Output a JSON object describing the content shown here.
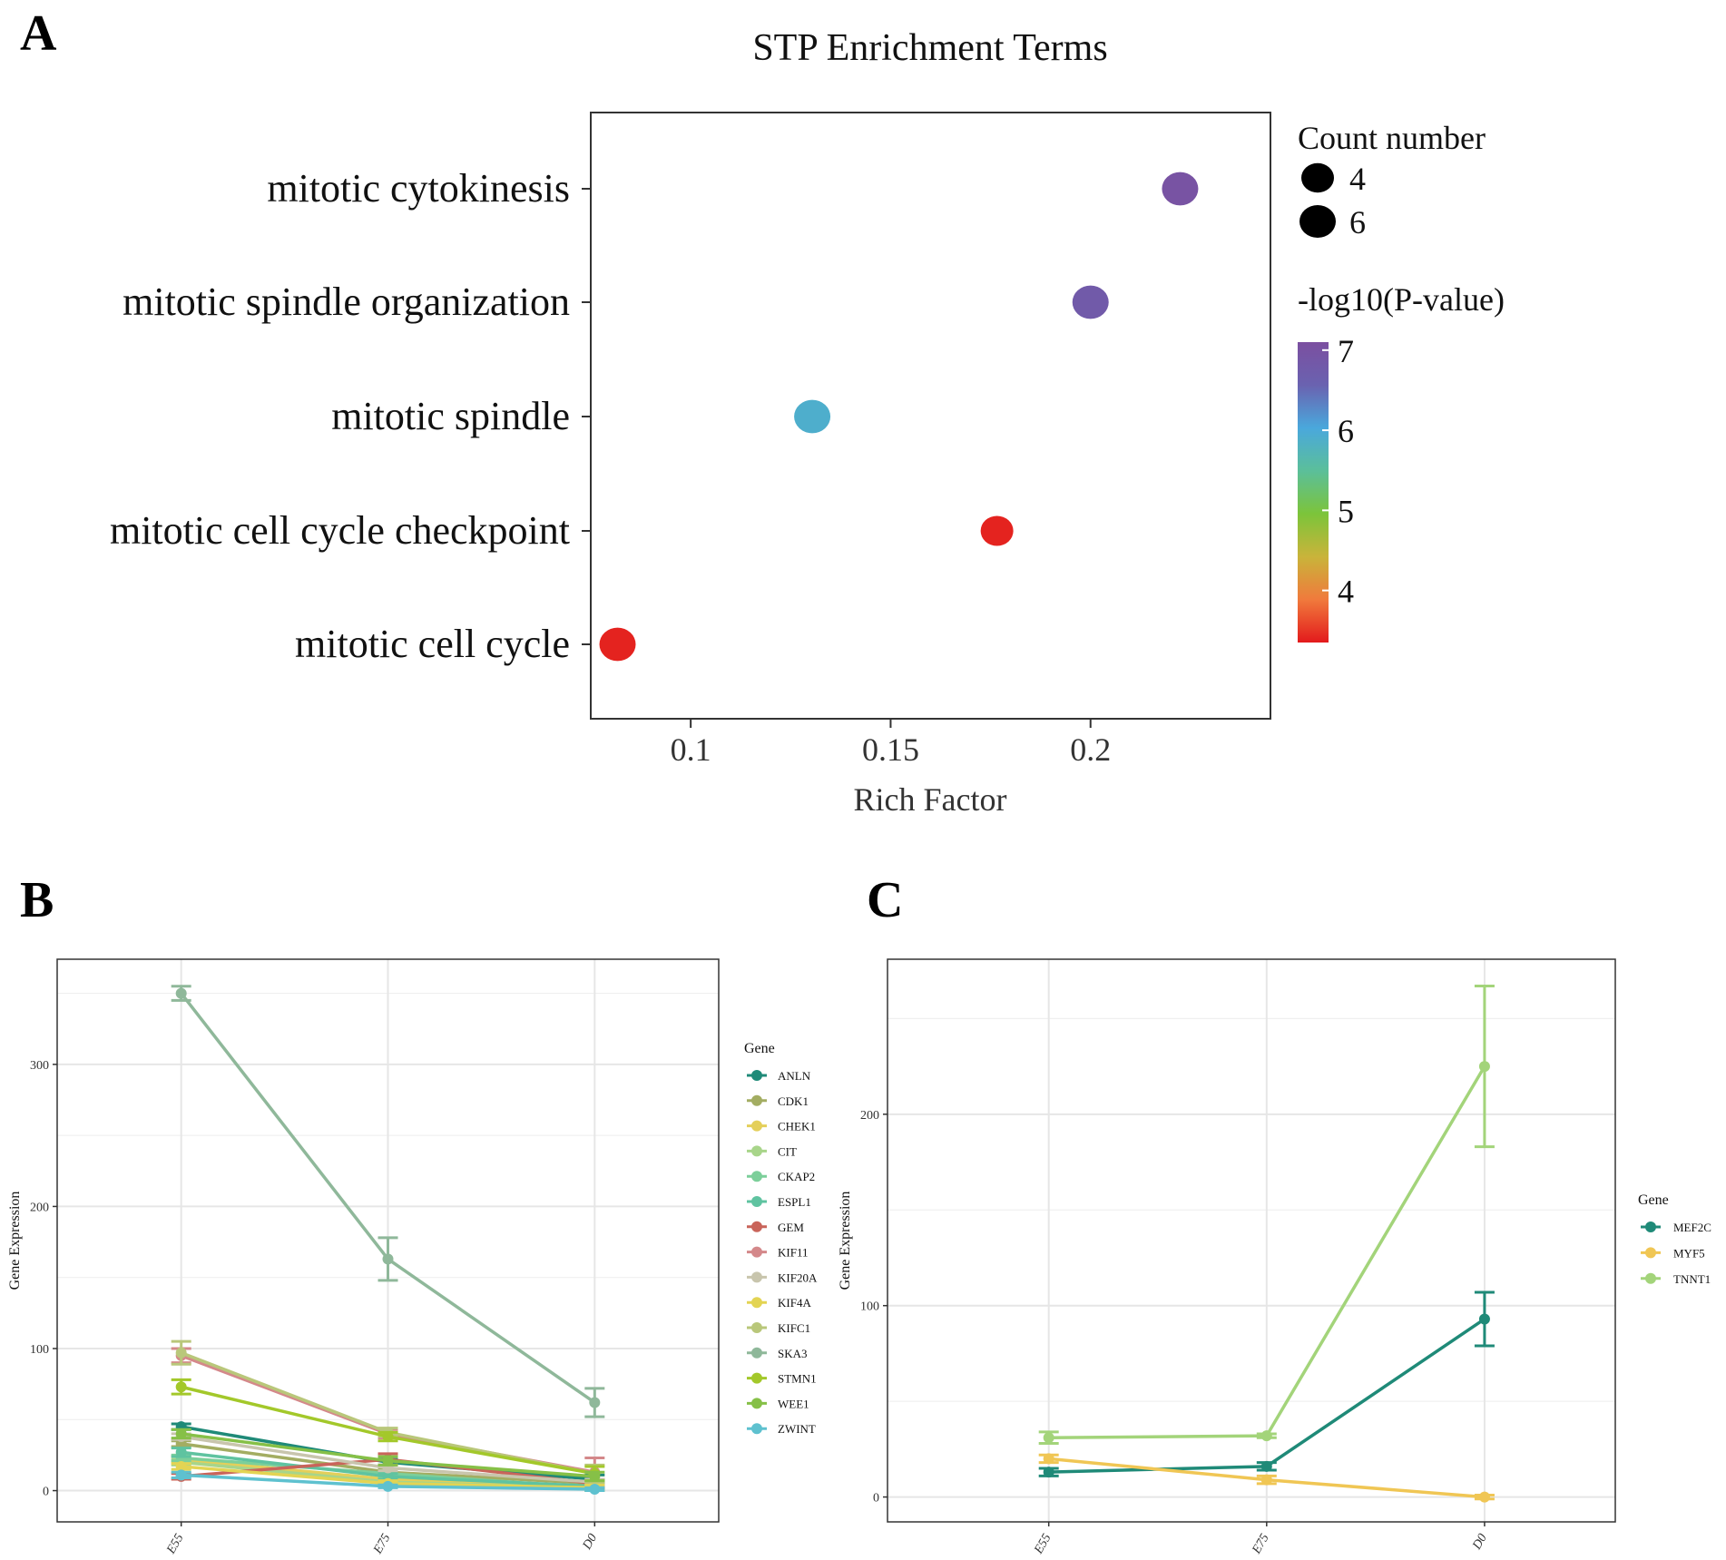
{
  "panel_letters": {
    "a": "A",
    "b": "B",
    "c": "C"
  },
  "chart_data": [
    {
      "type": "scatter",
      "panel": "A",
      "title": "STP Enrichment Terms",
      "xlabel": "Rich Factor",
      "ylabel": "",
      "xlim": [
        0.075,
        0.245
      ],
      "xticks": [
        0.1,
        0.15,
        0.2
      ],
      "xtick_labels": [
        "0.1",
        "0.15",
        "0.2"
      ],
      "categories": [
        "mitotic cytokinesis",
        "mitotic spindle organization",
        "mitotic spindle",
        "mitotic cell cycle checkpoint",
        "mitotic cell cycle"
      ],
      "rich_factor": [
        0.2224,
        0.2,
        0.1304,
        0.1766,
        0.0817
      ],
      "neg_log10_p": [
        7.0,
        6.8,
        5.9,
        3.4,
        3.4
      ],
      "count": [
        6,
        6,
        6,
        4,
        6
      ],
      "size_legend": {
        "title": "Count number",
        "values": [
          4,
          6
        ],
        "labels": [
          "4",
          "6"
        ]
      },
      "color_legend": {
        "title": "-log10(P-value)",
        "range": [
          3.35,
          7.1
        ],
        "ticks": [
          7,
          6,
          5,
          4
        ],
        "tick_labels": [
          "7",
          "6",
          "5",
          "4"
        ],
        "colors": [
          "#e31a1c",
          "#f07a3c",
          "#c9b43a",
          "#7cc43a",
          "#5bbf9a",
          "#4aa8dc",
          "#6a62b0",
          "#7b4fa0"
        ]
      },
      "grid": false
    },
    {
      "type": "line",
      "panel": "B",
      "xlabel": "",
      "ylabel": "Gene Expression",
      "categories": [
        "E55",
        "E75",
        "D0"
      ],
      "ylim": [
        -22,
        374
      ],
      "yticks": [
        0,
        100,
        200,
        300
      ],
      "ytick_labels": [
        "0",
        "100",
        "200",
        "300"
      ],
      "legend_title": "Gene",
      "legend_position": "right",
      "grid": true,
      "series": [
        {
          "name": "ANLN",
          "color": "#1f8a78",
          "values": [
            45,
            20,
            8
          ],
          "err": [
            2,
            2,
            3
          ]
        },
        {
          "name": "CDK1",
          "color": "#a3ad62",
          "values": [
            33,
            13,
            5
          ],
          "err": [
            2,
            2,
            2
          ]
        },
        {
          "name": "CHEK1",
          "color": "#e4cf5a",
          "values": [
            22,
            8,
            3
          ],
          "err": [
            2,
            2,
            2
          ]
        },
        {
          "name": "CIT",
          "color": "#a8d58a",
          "values": [
            20,
            6,
            2
          ],
          "err": [
            2,
            2,
            2
          ]
        },
        {
          "name": "CKAP2",
          "color": "#7ccf9a",
          "values": [
            23,
            12,
            2
          ],
          "err": [
            2,
            2,
            2
          ]
        },
        {
          "name": "ESPL1",
          "color": "#5fc3a0",
          "values": [
            27,
            10,
            3
          ],
          "err": [
            3,
            2,
            2
          ]
        },
        {
          "name": "GEM",
          "color": "#c9645a",
          "values": [
            10,
            22,
            5
          ],
          "err": [
            2,
            4,
            3
          ]
        },
        {
          "name": "KIF11",
          "color": "#d4888a",
          "values": [
            95,
            40,
            13
          ],
          "err": [
            5,
            3,
            10
          ]
        },
        {
          "name": "KIF20A",
          "color": "#c8c5ad",
          "values": [
            38,
            16,
            6
          ],
          "err": [
            2,
            2,
            2
          ]
        },
        {
          "name": "KIF4A",
          "color": "#e3d453",
          "values": [
            17,
            5,
            2
          ],
          "err": [
            2,
            2,
            2
          ]
        },
        {
          "name": "KIFC1",
          "color": "#b9c77a",
          "values": [
            97,
            41,
            12
          ],
          "err": [
            8,
            3,
            6
          ]
        },
        {
          "name": "SKA3",
          "color": "#8fb89a",
          "values": [
            350,
            163,
            62
          ],
          "err": [
            5,
            15,
            10
          ]
        },
        {
          "name": "STMN1",
          "color": "#a3c82a",
          "values": [
            73,
            38,
            12
          ],
          "err": [
            5,
            3,
            5
          ]
        },
        {
          "name": "WEE1",
          "color": "#86c047",
          "values": [
            40,
            21,
            10
          ],
          "err": [
            3,
            3,
            3
          ]
        },
        {
          "name": "ZWINT",
          "color": "#5ec1cf",
          "values": [
            11,
            3,
            1
          ],
          "err": [
            2,
            1,
            1
          ]
        }
      ]
    },
    {
      "type": "line",
      "panel": "C",
      "xlabel": "",
      "ylabel": "Gene Expression",
      "categories": [
        "E55",
        "E75",
        "D0"
      ],
      "ylim": [
        -13,
        281
      ],
      "yticks": [
        0,
        100,
        200
      ],
      "ytick_labels": [
        "0",
        "100",
        "200"
      ],
      "legend_title": "Gene",
      "legend_position": "right",
      "grid": true,
      "series": [
        {
          "name": "MEF2C",
          "color": "#1f8a78",
          "values": [
            13,
            16,
            93
          ],
          "err": [
            2,
            2,
            14
          ]
        },
        {
          "name": "MYF5",
          "color": "#f0c654",
          "values": [
            20,
            9,
            0
          ],
          "err": [
            2,
            2,
            1
          ]
        },
        {
          "name": "TNNT1",
          "color": "#a3d47a",
          "values": [
            31,
            32,
            225
          ],
          "err": [
            3,
            1,
            42
          ]
        }
      ]
    }
  ]
}
